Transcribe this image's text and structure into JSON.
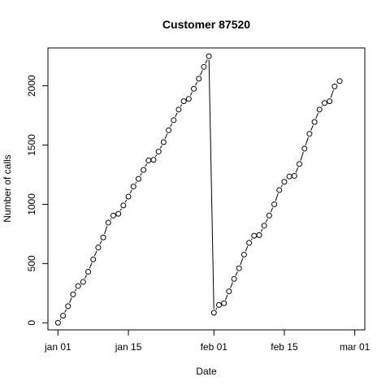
{
  "chart_data": {
    "type": "line",
    "title": "Customer 87520",
    "xlabel": "Date",
    "ylabel": "Number of calls",
    "x_type": "date",
    "xlim": [
      "2021-12-30",
      "2022-03-03"
    ],
    "ylim": [
      -60,
      2320
    ],
    "x_ticks": [
      "2022-01-01",
      "2022-01-15",
      "2022-02-01",
      "2022-02-15",
      "2022-03-01"
    ],
    "x_tick_labels": [
      "jan 01",
      "jan 15",
      "feb 01",
      "feb 15",
      "mar 01"
    ],
    "y_ticks": [
      0,
      500,
      1000,
      1500,
      2000
    ],
    "y_tick_labels": [
      "0",
      "500",
      "1000",
      "1500",
      "2000"
    ],
    "grid": false,
    "marker": "open-circle",
    "line_style": "line-with-gaps",
    "series": [
      {
        "x": [
          "2022-01-01",
          "2022-01-02",
          "2022-01-03",
          "2022-01-04",
          "2022-01-05",
          "2022-01-06",
          "2022-01-07",
          "2022-01-08",
          "2022-01-09",
          "2022-01-10",
          "2022-01-11",
          "2022-01-12",
          "2022-01-13",
          "2022-01-14",
          "2022-01-15",
          "2022-01-16",
          "2022-01-17",
          "2022-01-18",
          "2022-01-19",
          "2022-01-20",
          "2022-01-21",
          "2022-01-22",
          "2022-01-23",
          "2022-01-24",
          "2022-01-25",
          "2022-01-26",
          "2022-01-27",
          "2022-01-28",
          "2022-01-29",
          "2022-01-30",
          "2022-01-31",
          "2022-02-01",
          "2022-02-02",
          "2022-02-03",
          "2022-02-04",
          "2022-02-05",
          "2022-02-06",
          "2022-02-07",
          "2022-02-08",
          "2022-02-09",
          "2022-02-10",
          "2022-02-11",
          "2022-02-12",
          "2022-02-13",
          "2022-02-14",
          "2022-02-15",
          "2022-02-16",
          "2022-02-17",
          "2022-02-18",
          "2022-02-19",
          "2022-02-20",
          "2022-02-21",
          "2022-02-22",
          "2022-02-23",
          "2022-02-24",
          "2022-02-25",
          "2022-02-26"
        ],
        "values": [
          0,
          60,
          140,
          240,
          310,
          345,
          430,
          535,
          635,
          720,
          845,
          905,
          920,
          990,
          1065,
          1150,
          1215,
          1290,
          1370,
          1375,
          1445,
          1525,
          1625,
          1710,
          1800,
          1870,
          1890,
          1975,
          2060,
          2160,
          2250,
          85,
          150,
          165,
          265,
          370,
          460,
          575,
          675,
          735,
          740,
          820,
          905,
          1000,
          1120,
          1190,
          1235,
          1240,
          1340,
          1470,
          1595,
          1695,
          1800,
          1855,
          1870,
          1995,
          2040
        ]
      }
    ]
  }
}
